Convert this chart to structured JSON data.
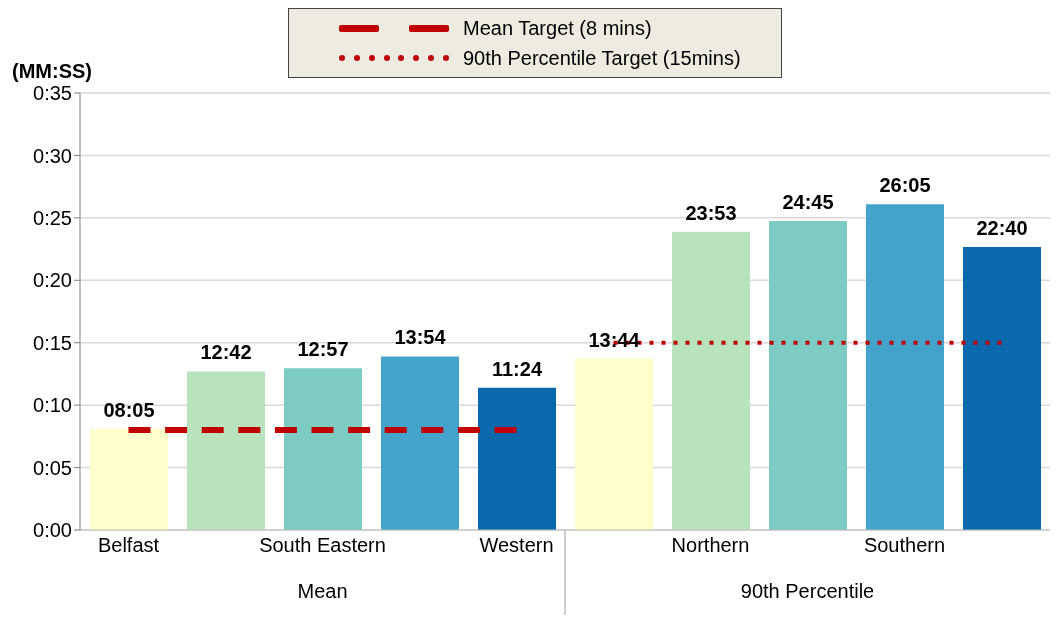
{
  "chart_data": {
    "type": "bar",
    "ylabel": "(MM:SS)",
    "categories": [
      "Belfast",
      null,
      "South Eastern",
      null,
      "Western",
      null,
      "Northern",
      null,
      "Southern",
      null
    ],
    "series": [
      {
        "values": [
          8.083,
          12.7,
          12.95,
          13.9,
          11.4,
          13.733,
          23.883,
          24.75,
          26.083,
          22.667
        ],
        "colors": [
          "#ffffcc",
          "#b9e3bc",
          "#7dccc4",
          "#43a3cb",
          "#0a68ad",
          "#ffffcc",
          "#b9e3bc",
          "#7dccc4",
          "#43a3cb",
          "#0a68ad"
        ],
        "value_labels": [
          "08:05",
          "12:42",
          "12:57",
          "13:54",
          "11:24",
          "13:44",
          "23:53",
          "24:45",
          "26:05",
          "22:40"
        ]
      },
      {
        "type": "line",
        "name": "Mean Target (8 mins)",
        "color": "#c00000",
        "line_style": "dashed",
        "values": [
          8,
          8,
          8,
          8,
          8,
          null,
          null,
          null,
          null,
          null
        ]
      },
      {
        "type": "line",
        "name": "90th Percentile Target (15mins)",
        "color": "#c00000",
        "line_style": "dotted",
        "values": [
          null,
          null,
          null,
          null,
          null,
          15,
          15,
          15,
          15,
          15
        ]
      }
    ],
    "ylim": [
      0,
      35
    ],
    "yticks": [
      {
        "value": 0,
        "label": "0:00"
      },
      {
        "value": 5,
        "label": "0:05"
      },
      {
        "value": 10,
        "label": "0:10"
      },
      {
        "value": 15,
        "label": "0:15"
      },
      {
        "value": 20,
        "label": "0:20"
      },
      {
        "value": 25,
        "label": "0:25"
      },
      {
        "value": 30,
        "label": "0:30"
      },
      {
        "value": 35,
        "label": "0:35"
      }
    ],
    "grid": "y",
    "legend": "top",
    "annotations": [
      "Mean",
      "90th Percentile"
    ]
  }
}
